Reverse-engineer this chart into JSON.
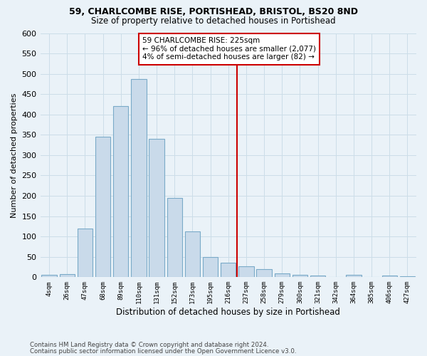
{
  "title": "59, CHARLCOMBE RISE, PORTISHEAD, BRISTOL, BS20 8ND",
  "subtitle": "Size of property relative to detached houses in Portishead",
  "xlabel": "Distribution of detached houses by size in Portishead",
  "ylabel": "Number of detached properties",
  "footnote1": "Contains HM Land Registry data © Crown copyright and database right 2024.",
  "footnote2": "Contains public sector information licensed under the Open Government Licence v3.0.",
  "bar_labels": [
    "4sqm",
    "26sqm",
    "47sqm",
    "68sqm",
    "89sqm",
    "110sqm",
    "131sqm",
    "152sqm",
    "173sqm",
    "195sqm",
    "216sqm",
    "237sqm",
    "258sqm",
    "279sqm",
    "300sqm",
    "321sqm",
    "342sqm",
    "364sqm",
    "385sqm",
    "406sqm",
    "427sqm"
  ],
  "bar_values": [
    5,
    7,
    120,
    345,
    420,
    487,
    340,
    195,
    113,
    50,
    35,
    26,
    20,
    10,
    5,
    4,
    1,
    5,
    1,
    4,
    2
  ],
  "bar_color": "#c9daea",
  "bar_edgecolor": "#7aaac8",
  "annotation_text": "59 CHARLCOMBE RISE: 225sqm\n← 96% of detached houses are smaller (2,077)\n4% of semi-detached houses are larger (82) →",
  "annotation_box_color": "#ffffff",
  "annotation_box_edgecolor": "#cc0000",
  "vline_color": "#cc0000",
  "vline_x": 10.5,
  "ylim": [
    0,
    600
  ],
  "yticks": [
    0,
    50,
    100,
    150,
    200,
    250,
    300,
    350,
    400,
    450,
    500,
    550,
    600
  ],
  "grid_color": "#ccdde8",
  "background_color": "#eaf2f8"
}
